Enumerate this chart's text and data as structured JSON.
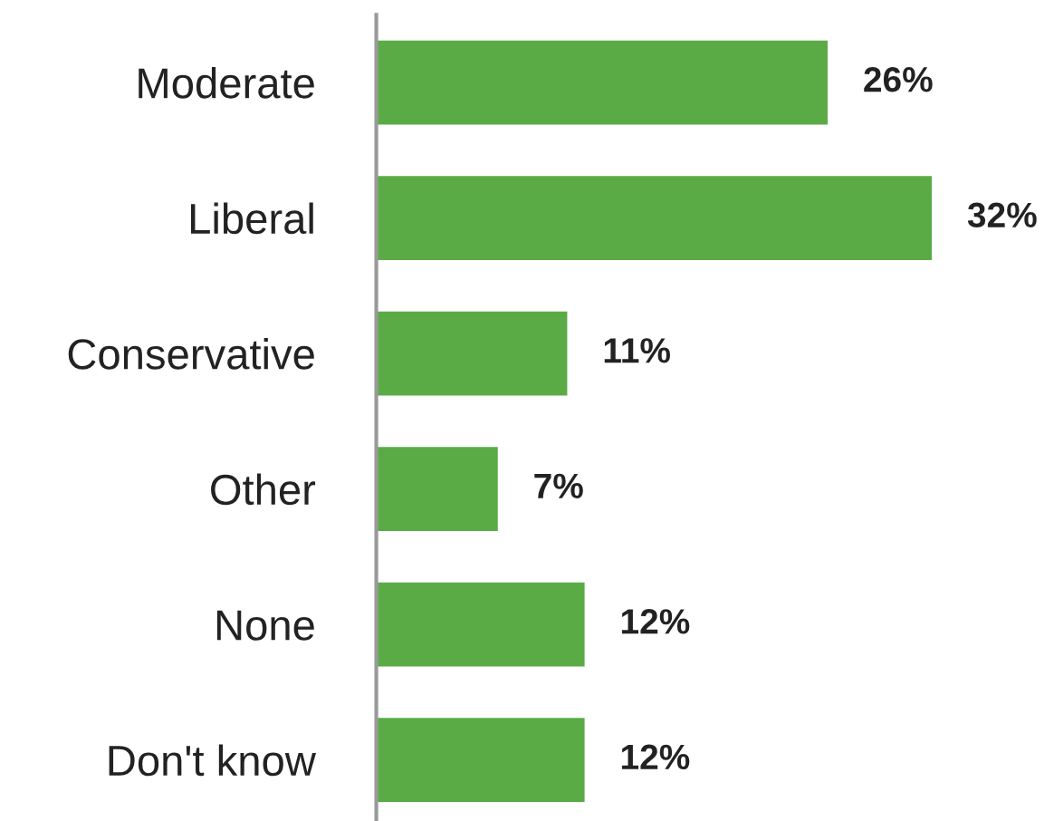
{
  "chart_data": {
    "type": "bar",
    "orientation": "horizontal",
    "categories": [
      "Moderate",
      "Liberal",
      "Conservative",
      "Other",
      "None",
      "Don't know"
    ],
    "values": [
      26,
      32,
      11,
      7,
      12,
      12
    ],
    "value_labels": [
      "26%",
      "32%",
      "11%",
      "7%",
      "12%",
      "12%"
    ],
    "color": "#5aab46"
  }
}
